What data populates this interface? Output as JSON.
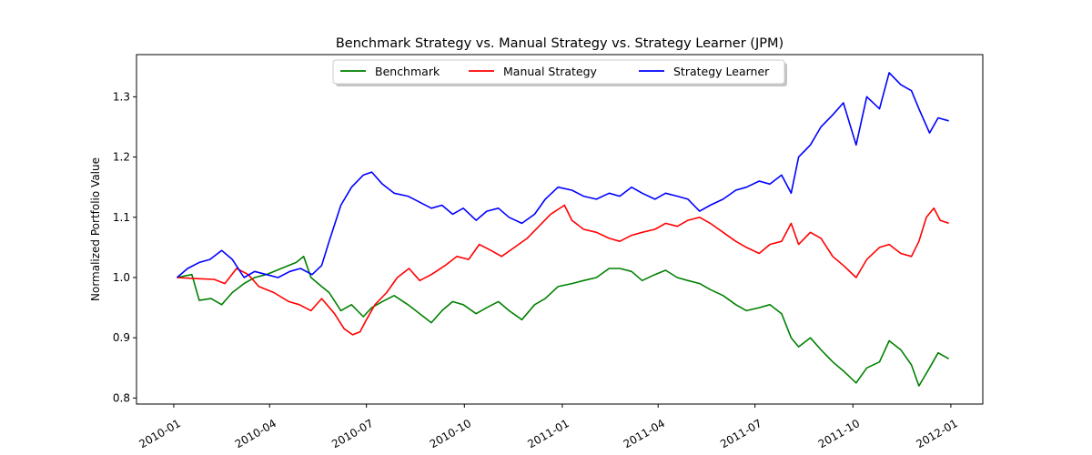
{
  "chart_data": {
    "type": "line",
    "title": "Benchmark Strategy vs. Manual Strategy vs. Strategy Learner (JPM)",
    "xlabel": "",
    "ylabel": "Normalized Portfolio Value",
    "xlim": [
      "2009-11-27",
      "2012-01-31"
    ],
    "ylim": [
      0.79,
      1.37
    ],
    "yticks": [
      0.8,
      0.9,
      1.0,
      1.1,
      1.2,
      1.3
    ],
    "ytick_labels": [
      "0.8",
      "0.9",
      "1.0",
      "1.1",
      "1.2",
      "1.3"
    ],
    "xticks": [
      "2010-01-01",
      "2010-04-01",
      "2010-07-01",
      "2010-10-01",
      "2011-01-01",
      "2011-04-01",
      "2011-07-01",
      "2011-10-01",
      "2012-01-01"
    ],
    "xtick_labels": [
      "2010-01",
      "2010-04",
      "2010-07",
      "2010-10",
      "2011-01",
      "2011-04",
      "2011-07",
      "2011-10",
      "2012-01"
    ],
    "grid": false,
    "legend": "upper-center",
    "series": [
      {
        "name": "Benchmark",
        "color": "#008000",
        "points": [
          [
            "2010-01-04",
            1.0
          ],
          [
            "2010-01-18",
            1.005
          ],
          [
            "2010-01-25",
            0.962
          ],
          [
            "2010-02-05",
            0.965
          ],
          [
            "2010-02-15",
            0.955
          ],
          [
            "2010-02-25",
            0.975
          ],
          [
            "2010-03-08",
            0.99
          ],
          [
            "2010-03-18",
            1.0
          ],
          [
            "2010-03-29",
            1.005
          ],
          [
            "2010-04-12",
            1.015
          ],
          [
            "2010-04-26",
            1.025
          ],
          [
            "2010-05-03",
            1.035
          ],
          [
            "2010-05-10",
            1.0
          ],
          [
            "2010-05-20",
            0.985
          ],
          [
            "2010-05-27",
            0.975
          ],
          [
            "2010-06-07",
            0.945
          ],
          [
            "2010-06-17",
            0.955
          ],
          [
            "2010-06-28",
            0.935
          ],
          [
            "2010-07-06",
            0.95
          ],
          [
            "2010-07-16",
            0.96
          ],
          [
            "2010-07-27",
            0.97
          ],
          [
            "2010-08-09",
            0.955
          ],
          [
            "2010-08-20",
            0.94
          ],
          [
            "2010-08-31",
            0.925
          ],
          [
            "2010-09-10",
            0.945
          ],
          [
            "2010-09-20",
            0.96
          ],
          [
            "2010-09-30",
            0.955
          ],
          [
            "2010-10-12",
            0.94
          ],
          [
            "2010-10-22",
            0.95
          ],
          [
            "2010-11-02",
            0.96
          ],
          [
            "2010-11-12",
            0.945
          ],
          [
            "2010-11-24",
            0.93
          ],
          [
            "2010-12-06",
            0.955
          ],
          [
            "2010-12-16",
            0.965
          ],
          [
            "2010-12-28",
            0.985
          ],
          [
            "2011-01-10",
            0.99
          ],
          [
            "2011-01-21",
            0.995
          ],
          [
            "2011-02-02",
            1.0
          ],
          [
            "2011-02-14",
            1.015
          ],
          [
            "2011-02-24",
            1.015
          ],
          [
            "2011-03-07",
            1.01
          ],
          [
            "2011-03-17",
            0.995
          ],
          [
            "2011-03-29",
            1.005
          ],
          [
            "2011-04-08",
            1.012
          ],
          [
            "2011-04-19",
            1.0
          ],
          [
            "2011-04-29",
            0.995
          ],
          [
            "2011-05-10",
            0.99
          ],
          [
            "2011-05-20",
            0.98
          ],
          [
            "2011-06-01",
            0.97
          ],
          [
            "2011-06-13",
            0.955
          ],
          [
            "2011-06-23",
            0.945
          ],
          [
            "2011-07-05",
            0.95
          ],
          [
            "2011-07-15",
            0.955
          ],
          [
            "2011-07-26",
            0.94
          ],
          [
            "2011-08-04",
            0.9
          ],
          [
            "2011-08-11",
            0.885
          ],
          [
            "2011-08-22",
            0.9
          ],
          [
            "2011-09-01",
            0.88
          ],
          [
            "2011-09-12",
            0.86
          ],
          [
            "2011-09-22",
            0.845
          ],
          [
            "2011-10-04",
            0.825
          ],
          [
            "2011-10-14",
            0.85
          ],
          [
            "2011-10-26",
            0.86
          ],
          [
            "2011-11-04",
            0.895
          ],
          [
            "2011-11-15",
            0.88
          ],
          [
            "2011-11-25",
            0.855
          ],
          [
            "2011-12-02",
            0.82
          ],
          [
            "2011-12-12",
            0.85
          ],
          [
            "2011-12-20",
            0.875
          ],
          [
            "2011-12-30",
            0.865
          ]
        ]
      },
      {
        "name": "Manual Strategy",
        "color": "#ff0000",
        "points": [
          [
            "2010-01-04",
            1.0
          ],
          [
            "2010-01-25",
            0.998
          ],
          [
            "2010-02-08",
            0.997
          ],
          [
            "2010-02-18",
            0.99
          ],
          [
            "2010-03-01",
            1.015
          ],
          [
            "2010-03-12",
            1.005
          ],
          [
            "2010-03-22",
            0.985
          ],
          [
            "2010-04-05",
            0.975
          ],
          [
            "2010-04-19",
            0.96
          ],
          [
            "2010-04-29",
            0.955
          ],
          [
            "2010-05-10",
            0.945
          ],
          [
            "2010-05-20",
            0.965
          ],
          [
            "2010-06-01",
            0.94
          ],
          [
            "2010-06-10",
            0.915
          ],
          [
            "2010-06-18",
            0.905
          ],
          [
            "2010-06-25",
            0.91
          ],
          [
            "2010-07-01",
            0.93
          ],
          [
            "2010-07-09",
            0.955
          ],
          [
            "2010-07-20",
            0.975
          ],
          [
            "2010-07-30",
            1.0
          ],
          [
            "2010-08-10",
            1.015
          ],
          [
            "2010-08-20",
            0.995
          ],
          [
            "2010-08-31",
            1.005
          ],
          [
            "2010-09-13",
            1.02
          ],
          [
            "2010-09-24",
            1.035
          ],
          [
            "2010-10-05",
            1.03
          ],
          [
            "2010-10-15",
            1.055
          ],
          [
            "2010-10-26",
            1.045
          ],
          [
            "2010-11-05",
            1.035
          ],
          [
            "2010-11-17",
            1.05
          ],
          [
            "2010-11-29",
            1.065
          ],
          [
            "2010-12-10",
            1.085
          ],
          [
            "2010-12-21",
            1.105
          ],
          [
            "2011-01-03",
            1.12
          ],
          [
            "2011-01-10",
            1.095
          ],
          [
            "2011-01-21",
            1.08
          ],
          [
            "2011-02-02",
            1.075
          ],
          [
            "2011-02-14",
            1.065
          ],
          [
            "2011-02-24",
            1.06
          ],
          [
            "2011-03-07",
            1.07
          ],
          [
            "2011-03-17",
            1.075
          ],
          [
            "2011-03-29",
            1.08
          ],
          [
            "2011-04-08",
            1.09
          ],
          [
            "2011-04-19",
            1.085
          ],
          [
            "2011-04-29",
            1.095
          ],
          [
            "2011-05-10",
            1.1
          ],
          [
            "2011-05-20",
            1.09
          ],
          [
            "2011-06-01",
            1.075
          ],
          [
            "2011-06-13",
            1.06
          ],
          [
            "2011-06-23",
            1.05
          ],
          [
            "2011-07-05",
            1.04
          ],
          [
            "2011-07-15",
            1.055
          ],
          [
            "2011-07-26",
            1.06
          ],
          [
            "2011-08-04",
            1.09
          ],
          [
            "2011-08-11",
            1.055
          ],
          [
            "2011-08-22",
            1.075
          ],
          [
            "2011-09-01",
            1.065
          ],
          [
            "2011-09-12",
            1.035
          ],
          [
            "2011-09-22",
            1.02
          ],
          [
            "2011-10-04",
            1.0
          ],
          [
            "2011-10-14",
            1.03
          ],
          [
            "2011-10-26",
            1.05
          ],
          [
            "2011-11-04",
            1.055
          ],
          [
            "2011-11-15",
            1.04
          ],
          [
            "2011-11-25",
            1.035
          ],
          [
            "2011-12-02",
            1.06
          ],
          [
            "2011-12-09",
            1.1
          ],
          [
            "2011-12-16",
            1.115
          ],
          [
            "2011-12-22",
            1.095
          ],
          [
            "2011-12-30",
            1.09
          ]
        ]
      },
      {
        "name": "Strategy Learner",
        "color": "#0000ff",
        "points": [
          [
            "2010-01-04",
            1.0
          ],
          [
            "2010-01-14",
            1.015
          ],
          [
            "2010-01-25",
            1.025
          ],
          [
            "2010-02-04",
            1.03
          ],
          [
            "2010-02-15",
            1.045
          ],
          [
            "2010-02-25",
            1.03
          ],
          [
            "2010-03-08",
            1.0
          ],
          [
            "2010-03-18",
            1.01
          ],
          [
            "2010-03-29",
            1.005
          ],
          [
            "2010-04-09",
            1.0
          ],
          [
            "2010-04-20",
            1.01
          ],
          [
            "2010-04-30",
            1.015
          ],
          [
            "2010-05-11",
            1.005
          ],
          [
            "2010-05-20",
            1.02
          ],
          [
            "2010-05-27",
            1.06
          ],
          [
            "2010-06-07",
            1.12
          ],
          [
            "2010-06-17",
            1.15
          ],
          [
            "2010-06-28",
            1.17
          ],
          [
            "2010-07-06",
            1.175
          ],
          [
            "2010-07-16",
            1.155
          ],
          [
            "2010-07-27",
            1.14
          ],
          [
            "2010-08-09",
            1.135
          ],
          [
            "2010-08-20",
            1.125
          ],
          [
            "2010-08-31",
            1.115
          ],
          [
            "2010-09-10",
            1.12
          ],
          [
            "2010-09-20",
            1.105
          ],
          [
            "2010-09-30",
            1.115
          ],
          [
            "2010-10-12",
            1.095
          ],
          [
            "2010-10-22",
            1.11
          ],
          [
            "2010-11-02",
            1.115
          ],
          [
            "2010-11-12",
            1.1
          ],
          [
            "2010-11-24",
            1.09
          ],
          [
            "2010-12-06",
            1.105
          ],
          [
            "2010-12-16",
            1.13
          ],
          [
            "2010-12-28",
            1.15
          ],
          [
            "2011-01-10",
            1.145
          ],
          [
            "2011-01-21",
            1.135
          ],
          [
            "2011-02-02",
            1.13
          ],
          [
            "2011-02-14",
            1.14
          ],
          [
            "2011-02-24",
            1.135
          ],
          [
            "2011-03-07",
            1.15
          ],
          [
            "2011-03-17",
            1.14
          ],
          [
            "2011-03-29",
            1.13
          ],
          [
            "2011-04-08",
            1.14
          ],
          [
            "2011-04-19",
            1.135
          ],
          [
            "2011-04-29",
            1.13
          ],
          [
            "2011-05-10",
            1.11
          ],
          [
            "2011-05-20",
            1.12
          ],
          [
            "2011-06-01",
            1.13
          ],
          [
            "2011-06-13",
            1.145
          ],
          [
            "2011-06-23",
            1.15
          ],
          [
            "2011-07-05",
            1.16
          ],
          [
            "2011-07-15",
            1.155
          ],
          [
            "2011-07-26",
            1.17
          ],
          [
            "2011-08-04",
            1.14
          ],
          [
            "2011-08-11",
            1.2
          ],
          [
            "2011-08-22",
            1.22
          ],
          [
            "2011-09-01",
            1.25
          ],
          [
            "2011-09-12",
            1.27
          ],
          [
            "2011-09-22",
            1.29
          ],
          [
            "2011-10-04",
            1.22
          ],
          [
            "2011-10-14",
            1.3
          ],
          [
            "2011-10-26",
            1.28
          ],
          [
            "2011-11-04",
            1.34
          ],
          [
            "2011-11-15",
            1.32
          ],
          [
            "2011-11-25",
            1.31
          ],
          [
            "2011-12-02",
            1.28
          ],
          [
            "2011-12-12",
            1.24
          ],
          [
            "2011-12-20",
            1.265
          ],
          [
            "2011-12-30",
            1.26
          ]
        ]
      }
    ]
  }
}
